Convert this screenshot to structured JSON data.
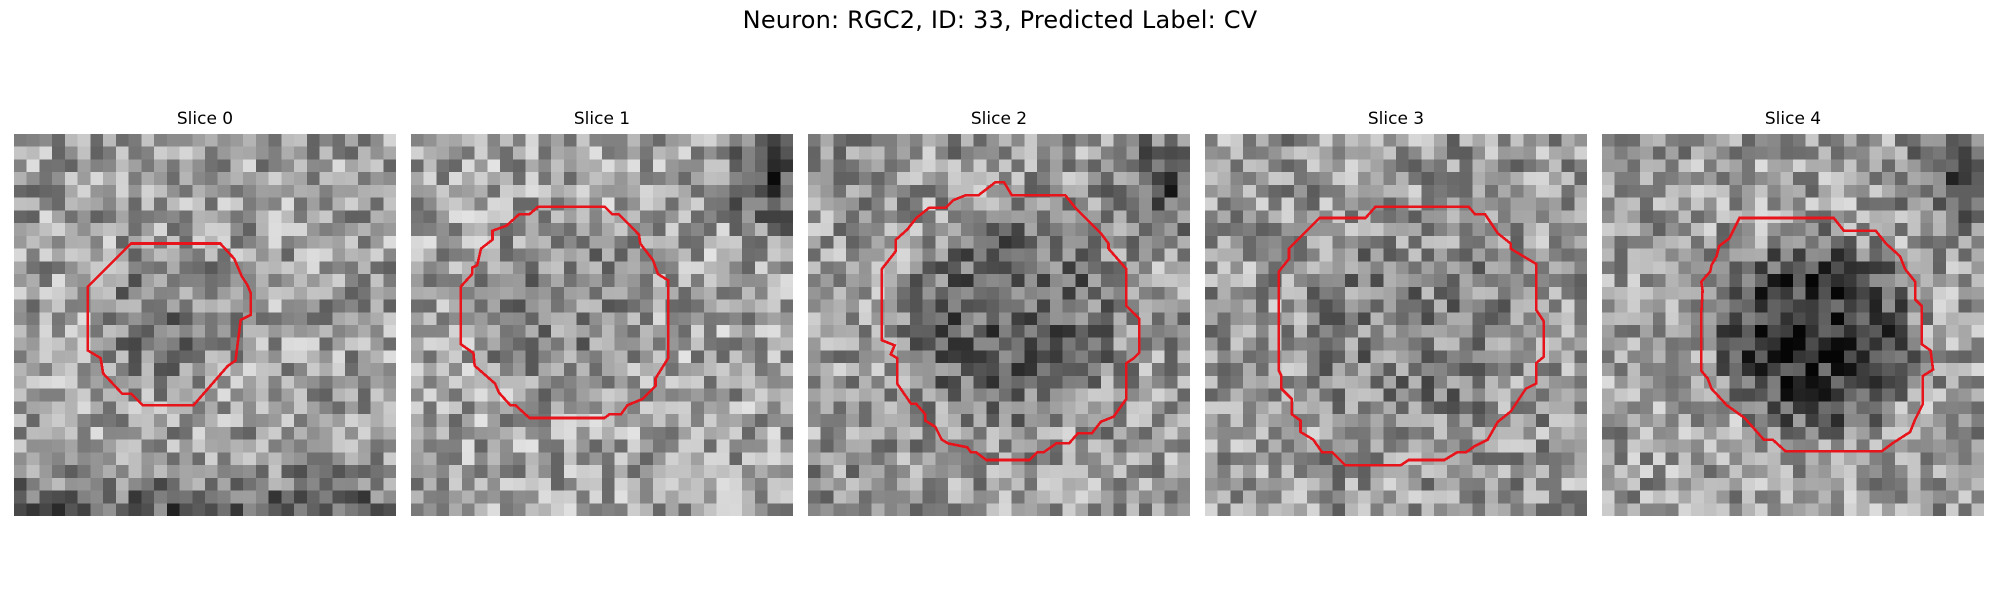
{
  "title": "Neuron: RGC2, ID: 33, Predicted Label: CV",
  "colors": {
    "contour": "#e8141c",
    "colormap": "grayscale"
  },
  "panels": [
    {
      "title": "Slice 0",
      "seed": 11,
      "mean": 0.62,
      "center_dark": 0.12,
      "dark_corner": "bottom"
    },
    {
      "title": "Slice 1",
      "seed": 23,
      "mean": 0.64,
      "center_dark": 0.1,
      "dark_corner": "topright"
    },
    {
      "title": "Slice 2",
      "seed": 37,
      "mean": 0.6,
      "center_dark": 0.22,
      "dark_corner": "topright"
    },
    {
      "title": "Slice 3",
      "seed": 41,
      "mean": 0.6,
      "center_dark": 0.1,
      "dark_corner": "none"
    },
    {
      "title": "Slice 4",
      "seed": 53,
      "mean": 0.62,
      "center_dark": 0.42,
      "dark_corner": "topright"
    }
  ]
}
